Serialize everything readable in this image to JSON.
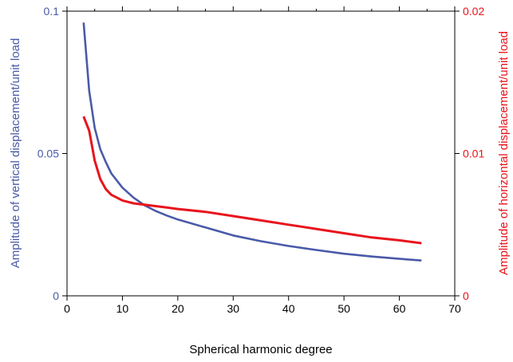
{
  "chart_data": {
    "type": "line",
    "xlabel": "Spherical harmonic degree",
    "xlim": [
      0,
      70
    ],
    "x_ticks": [
      "0",
      "10",
      "20",
      "30",
      "40",
      "50",
      "60",
      "70"
    ],
    "y_left": {
      "label": "Amplitude of vertical displacement/unit load",
      "lim": [
        0,
        0.1
      ],
      "ticks": [
        {
          "value": 0,
          "label": "0"
        },
        {
          "value": 0.05,
          "label": "0.05"
        },
        {
          "value": 0.1,
          "label": "0.1"
        }
      ],
      "color": "#4a5aa8"
    },
    "y_right": {
      "label": "Amplitude of horizontal displacement/unit load",
      "lim": [
        0,
        0.02
      ],
      "ticks": [
        {
          "value": 0,
          "label": "0"
        },
        {
          "value": 0.01,
          "label": "0.01"
        },
        {
          "value": 0.02,
          "label": "0.02"
        }
      ],
      "color": "#e8141c"
    },
    "series": [
      {
        "axis": "left",
        "color": "#4a5aa8",
        "x": [
          3,
          4,
          5,
          6,
          7,
          8,
          9,
          10,
          12,
          14,
          16,
          18,
          20,
          25,
          30,
          35,
          40,
          45,
          50,
          55,
          60,
          64
        ],
        "y": [
          0.096,
          0.072,
          0.059,
          0.0515,
          0.047,
          0.043,
          0.0405,
          0.038,
          0.0345,
          0.0318,
          0.0298,
          0.0282,
          0.0268,
          0.024,
          0.0212,
          0.0192,
          0.0175,
          0.0161,
          0.0148,
          0.0138,
          0.013,
          0.0124
        ]
      },
      {
        "axis": "right",
        "color": "#e8141c",
        "x": [
          3,
          4,
          5,
          6,
          7,
          8,
          9,
          10,
          12,
          14,
          16,
          18,
          20,
          25,
          30,
          35,
          40,
          45,
          50,
          55,
          60,
          64
        ],
        "y": [
          0.0126,
          0.0116,
          0.0095,
          0.0082,
          0.0075,
          0.0071,
          0.0069,
          0.0067,
          0.0065,
          0.0064,
          0.0063,
          0.0062,
          0.0061,
          0.0059,
          0.0056,
          0.0053,
          0.005,
          0.0047,
          0.0044,
          0.0041,
          0.0039,
          0.0037
        ]
      }
    ]
  }
}
